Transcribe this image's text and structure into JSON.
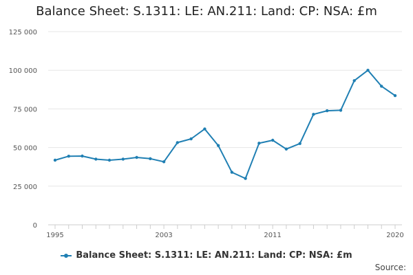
{
  "source_label": "Source:",
  "colors": {
    "series": "#1f7fb3",
    "grid": "#e6e6e6",
    "axis": "#cccccc"
  },
  "chart_data": {
    "type": "line",
    "title": "Balance Sheet: S.1311: LE: AN.211: Land: CP: NSA: £m",
    "xlabel": "",
    "ylabel": "",
    "grid": true,
    "legend_position": "bottom",
    "x_tick_labels": [
      "1995",
      "2003",
      "2011",
      "2020"
    ],
    "y_tick_labels": [
      "0",
      "25 000",
      "50 000",
      "75 000",
      "100 000",
      "125 000"
    ],
    "y_ticks": [
      0,
      25000,
      50000,
      75000,
      100000,
      125000
    ],
    "ylim": [
      0,
      125000
    ],
    "xlim": [
      1995,
      2020
    ],
    "series": [
      {
        "name": "Balance Sheet: S.1311: LE: AN.211: Land: CP: NSA: £m",
        "x": [
          1995,
          1996,
          1997,
          1998,
          1999,
          2000,
          2001,
          2002,
          2003,
          2004,
          2005,
          2006,
          2007,
          2008,
          2009,
          2010,
          2011,
          2012,
          2013,
          2014,
          2015,
          2016,
          2017,
          2018,
          2019,
          2020
        ],
        "values": [
          41800,
          44400,
          44500,
          42500,
          41800,
          42500,
          43600,
          42800,
          40800,
          53200,
          55600,
          62000,
          51300,
          34000,
          30000,
          52800,
          54700,
          49000,
          52600,
          71500,
          73800,
          74100,
          93300,
          100000,
          89700,
          83600
        ]
      }
    ]
  }
}
